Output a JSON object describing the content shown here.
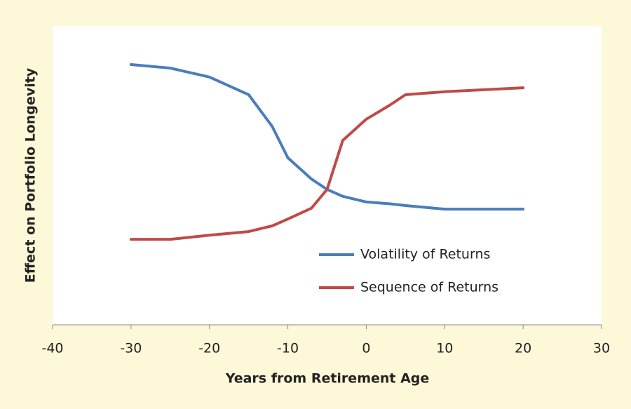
{
  "chart_data": {
    "type": "line",
    "x_label": "Years from Retirement Age",
    "y_label": "Effect on Portfolio Longevity",
    "x": [
      -30,
      -25,
      -20,
      -15,
      -12,
      -10,
      -7,
      -5,
      -3,
      0,
      3,
      5,
      10,
      20
    ],
    "series": [
      {
        "name": "Volatility of Returns",
        "color": "#4a7ebb",
        "values": [
          87.1,
          85.9,
          82.9,
          77,
          66.4,
          55.9,
          48.8,
          45.3,
          43,
          41.1,
          40.5,
          39.9,
          38.7,
          38.7
        ]
      },
      {
        "name": "Sequence of Returns",
        "color": "#be4b48",
        "values": [
          28.6,
          28.6,
          30,
          31.2,
          33.1,
          35.4,
          39,
          45.3,
          61.7,
          68.8,
          73.5,
          77,
          78,
          79.3
        ]
      }
    ],
    "xlim": [
      -40,
      30
    ],
    "xticks": [
      -40,
      -30,
      -20,
      -10,
      0,
      10,
      20,
      30
    ],
    "ylim": [
      0,
      100
    ],
    "legend": "lower-right"
  }
}
